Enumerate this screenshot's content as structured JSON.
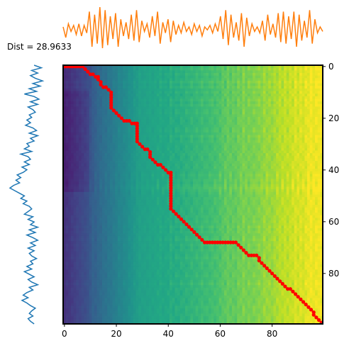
{
  "annotation": "Dist = 28.9633",
  "chart_data": [
    {
      "type": "heatmap",
      "name": "cost matrix",
      "colormap": "viridis",
      "rows": 100,
      "cols": 100,
      "xlim": [
        0,
        99
      ],
      "ylim": [
        99,
        0
      ],
      "xticks": [
        0,
        20,
        40,
        60,
        80
      ],
      "yticks": [
        0,
        20,
        40,
        60,
        80
      ],
      "yaxis_side": "right",
      "grid": false,
      "warping_path_color": "#ff0000",
      "warping_path": [
        [
          0,
          0
        ],
        [
          1,
          0
        ],
        [
          2,
          0
        ],
        [
          3,
          0
        ],
        [
          4,
          0
        ],
        [
          5,
          0
        ],
        [
          6,
          0
        ],
        [
          7,
          0
        ],
        [
          8,
          1
        ],
        [
          9,
          2
        ],
        [
          10,
          3
        ],
        [
          11,
          3
        ],
        [
          12,
          4
        ],
        [
          13,
          4
        ],
        [
          13,
          5
        ],
        [
          14,
          6
        ],
        [
          14,
          7
        ],
        [
          15,
          8
        ],
        [
          16,
          8
        ],
        [
          17,
          9
        ],
        [
          18,
          10
        ],
        [
          18,
          11
        ],
        [
          18,
          12
        ],
        [
          18,
          13
        ],
        [
          18,
          14
        ],
        [
          18,
          15
        ],
        [
          18,
          16
        ],
        [
          19,
          17
        ],
        [
          20,
          18
        ],
        [
          21,
          19
        ],
        [
          22,
          20
        ],
        [
          23,
          21
        ],
        [
          24,
          21
        ],
        [
          25,
          21
        ],
        [
          26,
          22
        ],
        [
          27,
          22
        ],
        [
          28,
          22
        ],
        [
          28,
          23
        ],
        [
          28,
          24
        ],
        [
          28,
          25
        ],
        [
          28,
          26
        ],
        [
          28,
          27
        ],
        [
          28,
          28
        ],
        [
          28,
          29
        ],
        [
          29,
          30
        ],
        [
          30,
          31
        ],
        [
          31,
          32
        ],
        [
          32,
          32
        ],
        [
          33,
          33
        ],
        [
          33,
          34
        ],
        [
          33,
          35
        ],
        [
          34,
          36
        ],
        [
          35,
          37
        ],
        [
          36,
          38
        ],
        [
          37,
          38
        ],
        [
          38,
          39
        ],
        [
          39,
          40
        ],
        [
          40,
          41
        ],
        [
          41,
          41
        ],
        [
          41,
          42
        ],
        [
          41,
          43
        ],
        [
          41,
          44
        ],
        [
          41,
          45
        ],
        [
          41,
          46
        ],
        [
          41,
          47
        ],
        [
          41,
          48
        ],
        [
          41,
          49
        ],
        [
          41,
          50
        ],
        [
          41,
          51
        ],
        [
          41,
          52
        ],
        [
          41,
          53
        ],
        [
          41,
          54
        ],
        [
          41,
          55
        ],
        [
          42,
          56
        ],
        [
          43,
          57
        ],
        [
          44,
          58
        ],
        [
          45,
          59
        ],
        [
          46,
          60
        ],
        [
          47,
          61
        ],
        [
          48,
          62
        ],
        [
          49,
          63
        ],
        [
          50,
          64
        ],
        [
          51,
          65
        ],
        [
          52,
          66
        ],
        [
          53,
          67
        ],
        [
          54,
          68
        ],
        [
          55,
          68
        ],
        [
          56,
          68
        ],
        [
          57,
          68
        ],
        [
          58,
          68
        ],
        [
          59,
          68
        ],
        [
          60,
          68
        ],
        [
          61,
          68
        ],
        [
          62,
          68
        ],
        [
          63,
          68
        ],
        [
          64,
          68
        ],
        [
          65,
          68
        ],
        [
          66,
          68
        ],
        [
          67,
          69
        ],
        [
          68,
          70
        ],
        [
          69,
          71
        ],
        [
          70,
          72
        ],
        [
          71,
          73
        ],
        [
          72,
          73
        ],
        [
          73,
          73
        ],
        [
          74,
          73
        ],
        [
          75,
          74
        ],
        [
          75,
          75
        ],
        [
          76,
          76
        ],
        [
          77,
          77
        ],
        [
          78,
          78
        ],
        [
          79,
          79
        ],
        [
          80,
          80
        ],
        [
          81,
          81
        ],
        [
          82,
          82
        ],
        [
          83,
          83
        ],
        [
          84,
          84
        ],
        [
          85,
          85
        ],
        [
          86,
          86
        ],
        [
          87,
          86
        ],
        [
          88,
          87
        ],
        [
          89,
          88
        ],
        [
          90,
          89
        ],
        [
          91,
          90
        ],
        [
          92,
          91
        ],
        [
          93,
          92
        ],
        [
          94,
          93
        ],
        [
          95,
          94
        ],
        [
          96,
          95
        ],
        [
          96,
          96
        ],
        [
          97,
          97
        ],
        [
          98,
          98
        ],
        [
          99,
          99
        ]
      ]
    },
    {
      "type": "line",
      "name": "top series",
      "color": "#ff7f0e",
      "x": [
        0,
        1,
        2,
        3,
        4,
        5,
        6,
        7,
        8,
        9,
        10,
        11,
        12,
        13,
        14,
        15,
        16,
        17,
        18,
        19,
        20,
        21,
        22,
        23,
        24,
        25,
        26,
        27,
        28,
        29,
        30,
        31,
        32,
        33,
        34,
        35,
        36,
        37,
        38,
        39,
        40,
        41,
        42,
        43,
        44,
        45,
        46,
        47,
        48,
        49,
        50,
        51,
        52,
        53,
        54,
        55,
        56,
        57,
        58,
        59,
        60,
        61,
        62,
        63,
        64,
        65,
        66,
        67,
        68,
        69,
        70,
        71,
        72,
        73,
        74,
        75,
        76,
        77,
        78,
        79,
        80,
        81,
        82,
        83,
        84,
        85,
        86,
        87,
        88,
        89,
        90,
        91,
        92,
        93,
        94,
        95,
        96,
        97,
        98,
        99
      ],
      "values": [
        0.1,
        -0.6,
        0.3,
        -0.2,
        0.2,
        -0.4,
        0.3,
        -0.5,
        0.2,
        -0.3,
        1.1,
        -1.2,
        0.9,
        -1.0,
        1.4,
        -1.3,
        1.2,
        -1.1,
        0.8,
        -0.7,
        1.0,
        -1.2,
        0.6,
        -0.5,
        0.4,
        -0.7,
        0.9,
        -0.8,
        1.2,
        -0.9,
        0.5,
        -0.2,
        0.3,
        -0.6,
        0.8,
        -0.5,
        1.1,
        -1.0,
        0.4,
        -0.3,
        0.6,
        -0.9,
        0.5,
        -0.4,
        0.2,
        -0.3,
        0.4,
        -0.2,
        0.1,
        -0.4,
        0.3,
        -0.2,
        0.2,
        -0.5,
        0.1,
        -0.1,
        0.2,
        -0.3,
        0.3,
        -0.2,
        0.8,
        -0.7,
        1.2,
        -1.1,
        0.9,
        -0.6,
        0.4,
        -0.8,
        1.0,
        -1.2,
        0.7,
        -0.5,
        0.3,
        -0.2,
        0.1,
        -0.3,
        0.5,
        -0.8,
        0.9,
        -0.4,
        0.3,
        -0.6,
        1.0,
        -0.9,
        1.1,
        -1.0,
        0.8,
        -0.7,
        1.1,
        -1.2,
        0.9,
        -0.8,
        0.5,
        -0.6,
        1.2,
        -1.0,
        0.6,
        -0.3,
        0.1,
        -0.2
      ]
    },
    {
      "type": "line",
      "name": "left series",
      "orientation": "vertical",
      "color": "#1f77b4",
      "x": [
        0,
        1,
        2,
        3,
        4,
        5,
        6,
        7,
        8,
        9,
        10,
        11,
        12,
        13,
        14,
        15,
        16,
        17,
        18,
        19,
        20,
        21,
        22,
        23,
        24,
        25,
        26,
        27,
        28,
        29,
        30,
        31,
        32,
        33,
        34,
        35,
        36,
        37,
        38,
        39,
        40,
        41,
        42,
        43,
        44,
        45,
        46,
        47,
        48,
        49,
        50,
        51,
        52,
        53,
        54,
        55,
        56,
        57,
        58,
        59,
        60,
        61,
        62,
        63,
        64,
        65,
        66,
        67,
        68,
        69,
        70,
        71,
        72,
        73,
        74,
        75,
        76,
        77,
        78,
        79,
        80,
        81,
        82,
        83,
        84,
        85,
        86,
        87,
        88,
        89,
        90,
        91,
        92,
        93,
        94,
        95,
        96,
        97,
        98,
        99
      ],
      "values": [
        0.6,
        1.2,
        0.4,
        0.9,
        0.3,
        0.7,
        1.3,
        0.5,
        1.1,
        0.2,
        0.8,
        -0.2,
        0.6,
        1.0,
        0.3,
        0.9,
        0.1,
        0.5,
        0.7,
        0.2,
        0.4,
        0.0,
        0.3,
        -0.1,
        0.5,
        0.8,
        0.2,
        0.9,
        0.3,
        0.6,
        0.0,
        0.2,
        -0.2,
        0.4,
        -0.5,
        0.1,
        0.3,
        -0.2,
        0.2,
        -0.4,
        0.0,
        -0.3,
        -0.8,
        -0.5,
        -0.9,
        -0.6,
        -1.1,
        -1.4,
        -1.0,
        -0.6,
        -0.2,
        -0.5,
        0.0,
        -0.3,
        0.2,
        0.4,
        0.1,
        -0.2,
        0.5,
        0.1,
        0.6,
        0.3,
        0.9,
        0.2,
        0.7,
        0.0,
        0.5,
        0.9,
        0.3,
        0.7,
        0.1,
        0.6,
        0.2,
        0.4,
        0.8,
        0.3,
        0.5,
        0.0,
        0.4,
        -0.2,
        0.2,
        0.6,
        0.1,
        0.4,
        0.9,
        0.2,
        0.5,
        0.0,
        -0.3,
        0.1,
        -0.4,
        0.0,
        0.3,
        0.7,
        0.4,
        0.2,
        0.5,
        0.1,
        0.3,
        0.6
      ]
    }
  ]
}
